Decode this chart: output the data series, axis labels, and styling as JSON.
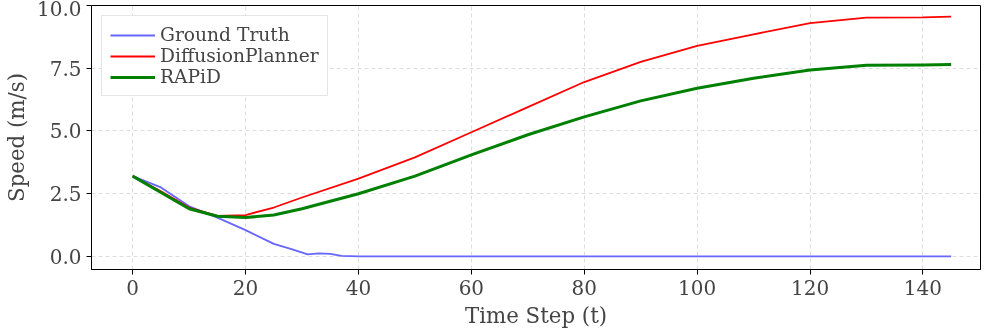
{
  "chart_data": {
    "type": "line",
    "xlabel": "Time Step (t)",
    "ylabel": "Speed (m/s)",
    "xlim": [
      -7.3,
      150.2
    ],
    "ylim": [
      -0.52,
      10
    ],
    "xticks": [
      0,
      20,
      40,
      60,
      80,
      100,
      120,
      140
    ],
    "yticks": [
      {
        "value": 0,
        "label": "0.0"
      },
      {
        "value": 2.5,
        "label": "2.5"
      },
      {
        "value": 5,
        "label": "5.0"
      },
      {
        "value": 7.5,
        "label": "7.5"
      },
      {
        "value": 10,
        "label": "10.0"
      }
    ],
    "grid": true,
    "legend": "top left",
    "line_style": "solid",
    "marker": "none",
    "series": [
      {
        "name": "Ground Truth",
        "color": "#6666ff",
        "x": [
          0,
          5,
          10,
          15,
          20,
          25,
          28,
          31,
          33,
          35,
          37,
          40,
          145
        ],
        "values": [
          3.2,
          2.75,
          2.0,
          1.55,
          1.05,
          0.5,
          0.3,
          0.08,
          0.12,
          0.1,
          0.02,
          0,
          0
        ]
      },
      {
        "name": "DiffusionPlanner",
        "color": "#ff0000",
        "x": [
          0,
          5,
          10,
          15,
          20,
          25,
          30,
          40,
          50,
          60,
          70,
          80,
          90,
          100,
          110,
          120,
          130,
          140,
          145
        ],
        "values": [
          3.2,
          2.6,
          1.95,
          1.62,
          1.65,
          1.95,
          2.35,
          3.1,
          3.95,
          4.95,
          5.95,
          6.95,
          7.75,
          8.39,
          8.85,
          9.3,
          9.52,
          9.53,
          9.56
        ]
      },
      {
        "name": "RAPiD",
        "color": "#008000",
        "x": [
          0,
          5,
          10,
          15,
          20,
          25,
          30,
          40,
          50,
          60,
          70,
          80,
          90,
          100,
          110,
          120,
          130,
          140,
          145
        ],
        "values": [
          3.2,
          2.55,
          1.9,
          1.6,
          1.55,
          1.65,
          1.9,
          2.5,
          3.2,
          4.05,
          4.85,
          5.56,
          6.2,
          6.7,
          7.1,
          7.43,
          7.62,
          7.63,
          7.65
        ]
      }
    ]
  }
}
